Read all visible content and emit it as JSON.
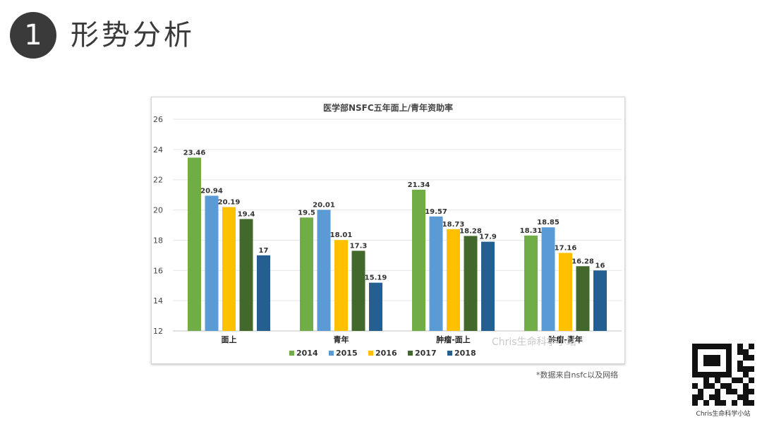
{
  "slide": {
    "number": "1",
    "heading": "形势分析"
  },
  "chart_data": {
    "type": "bar",
    "title": "医学部NSFC五年面上/青年资助率",
    "categories": [
      "面上",
      "青年",
      "肿瘤-面上",
      "肿瘤-青年"
    ],
    "series": [
      {
        "name": "2014",
        "color": "#70ad47",
        "values": [
          23.46,
          19.5,
          21.34,
          18.31
        ]
      },
      {
        "name": "2015",
        "color": "#5b9bd5",
        "values": [
          20.94,
          20.01,
          19.57,
          18.85
        ]
      },
      {
        "name": "2016",
        "color": "#ffc000",
        "values": [
          20.19,
          18.01,
          18.73,
          17.16
        ]
      },
      {
        "name": "2017",
        "color": "#43682b",
        "values": [
          19.4,
          17.3,
          18.28,
          16.28
        ]
      },
      {
        "name": "2018",
        "color": "#255e91",
        "values": [
          17,
          15.19,
          17.9,
          16
        ]
      }
    ],
    "ylim": [
      12,
      26
    ],
    "yticks": [
      12,
      14,
      16,
      18,
      20,
      22,
      24,
      26
    ],
    "grid": true,
    "legend": "bottom"
  },
  "watermark": "Chris生命科学小站",
  "source_note": "*数据来自nsfc以及网络",
  "qr_caption": "Chris生命科学小站"
}
